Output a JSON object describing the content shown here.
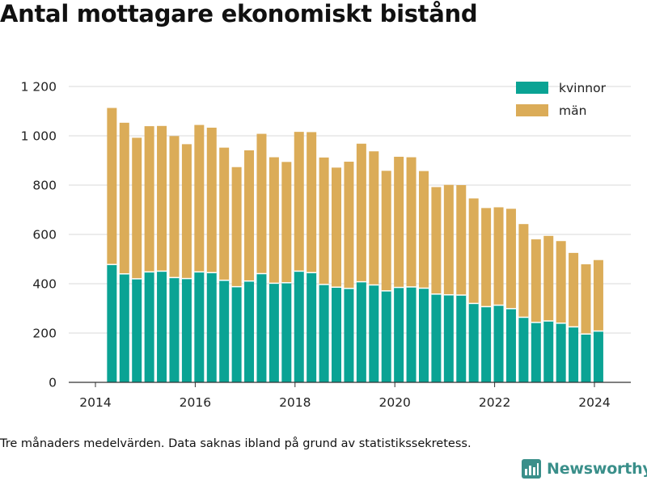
{
  "title": "Antal mottagare ekonomiskt bistånd",
  "footnote": "Tre månaders medelvärden. Data saknas ibland på grund av statistikssekretess.",
  "brand": {
    "name": "Newsworthy",
    "icon": "newsworthy-logo-icon",
    "color": "#3a8f8a"
  },
  "colors": {
    "kvinnor": "#0aa394",
    "man": "#dbac58",
    "grid": "#d9d9d9",
    "axis": "#333333"
  },
  "chart_data": {
    "type": "bar",
    "stacked": true,
    "title": "Antal mottagare ekonomiskt bistånd",
    "xlabel": "",
    "ylabel": "",
    "ylim": [
      0,
      1200
    ],
    "xlim": [
      2014,
      2024.35
    ],
    "yticks": [
      0,
      200,
      400,
      600,
      800,
      1000,
      1200
    ],
    "ytick_labels": [
      "0",
      "200",
      "400",
      "600",
      "800",
      "1 000",
      "1 200"
    ],
    "xticks": [
      2014,
      2016,
      2018,
      2020,
      2022,
      2024
    ],
    "xtick_labels": [
      "2014",
      "2016",
      "2018",
      "2020",
      "2022",
      "2024"
    ],
    "legend_position": "top-right",
    "grid": "horizontal",
    "x": [
      2014.33,
      2014.58,
      2014.83,
      2015.08,
      2015.33,
      2015.58,
      2015.83,
      2016.08,
      2016.33,
      2016.58,
      2016.83,
      2017.08,
      2017.33,
      2017.58,
      2017.83,
      2018.08,
      2018.33,
      2018.58,
      2018.83,
      2019.08,
      2019.33,
      2019.58,
      2019.83,
      2020.08,
      2020.33,
      2020.58,
      2020.83,
      2021.08,
      2021.33,
      2021.58,
      2021.83,
      2022.08,
      2022.33,
      2022.58,
      2022.83,
      2023.08,
      2023.33,
      2023.58,
      2023.83,
      2024.08
    ],
    "series": [
      {
        "name": "kvinnor",
        "values": [
          478,
          440,
          420,
          448,
          451,
          425,
          421,
          448,
          445,
          414,
          388,
          411,
          441,
          402,
          404,
          451,
          445,
          397,
          386,
          381,
          408,
          395,
          371,
          385,
          387,
          382,
          358,
          355,
          354,
          320,
          307,
          313,
          299,
          264,
          243,
          249,
          240,
          225,
          196,
          208
        ]
      },
      {
        "name": "män",
        "values": [
          635,
          613,
          572,
          591,
          589,
          574,
          545,
          596,
          588,
          538,
          485,
          530,
          567,
          511,
          490,
          565,
          570,
          515,
          485,
          514,
          560,
          542,
          487,
          530,
          526,
          475,
          434,
          446,
          446,
          426,
          400,
          397,
          405,
          378,
          337,
          345,
          333,
          300,
          283,
          288
        ]
      }
    ]
  }
}
